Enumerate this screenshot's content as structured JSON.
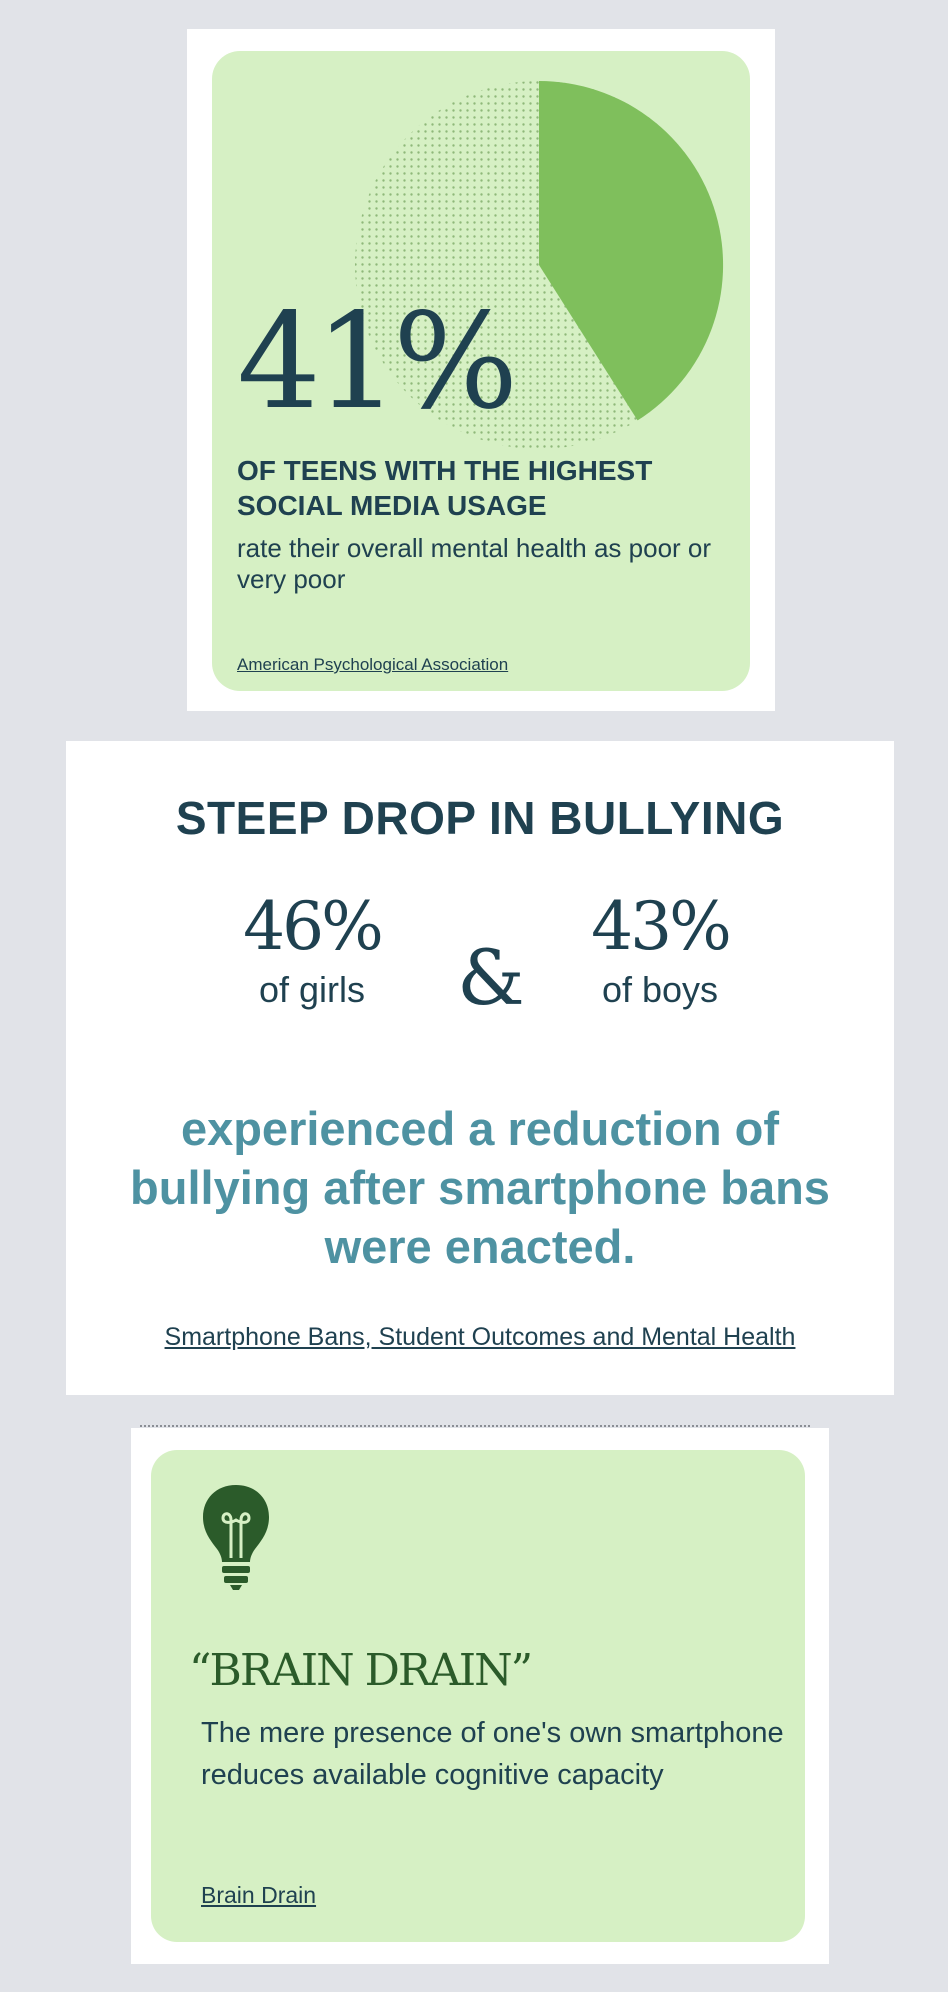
{
  "colors": {
    "background": "#e1e3e8",
    "card_green": "#d6f0c4",
    "pie_green": "#7fbf5c",
    "navy": "#1f4150",
    "teal": "#4e92a2",
    "dark_green": "#2b5b2a"
  },
  "stat_card": {
    "percent": "41%",
    "headline": "OF TEENS WITH THE HIGHEST SOCIAL MEDIA USAGE",
    "description": "rate their overall mental health as poor or very poor",
    "source": "American Psychological Association",
    "pie_fraction": 0.41
  },
  "bullying_card": {
    "title": "STEEP DROP IN BULLYING",
    "girls_percent": "46%",
    "girls_label": "of girls",
    "ampersand": "&",
    "boys_percent": "43%",
    "boys_label": "of boys",
    "description": "experienced a reduction of bullying after smartphone bans were enacted.",
    "source": "Smartphone Bans, Student Outcomes and Mental Health"
  },
  "brain_card": {
    "icon": "lightbulb-icon",
    "headline": "“BRAIN DRAIN”",
    "description": "The mere presence of one's own smartphone reduces available cognitive capacity",
    "source": "Brain Drain"
  }
}
